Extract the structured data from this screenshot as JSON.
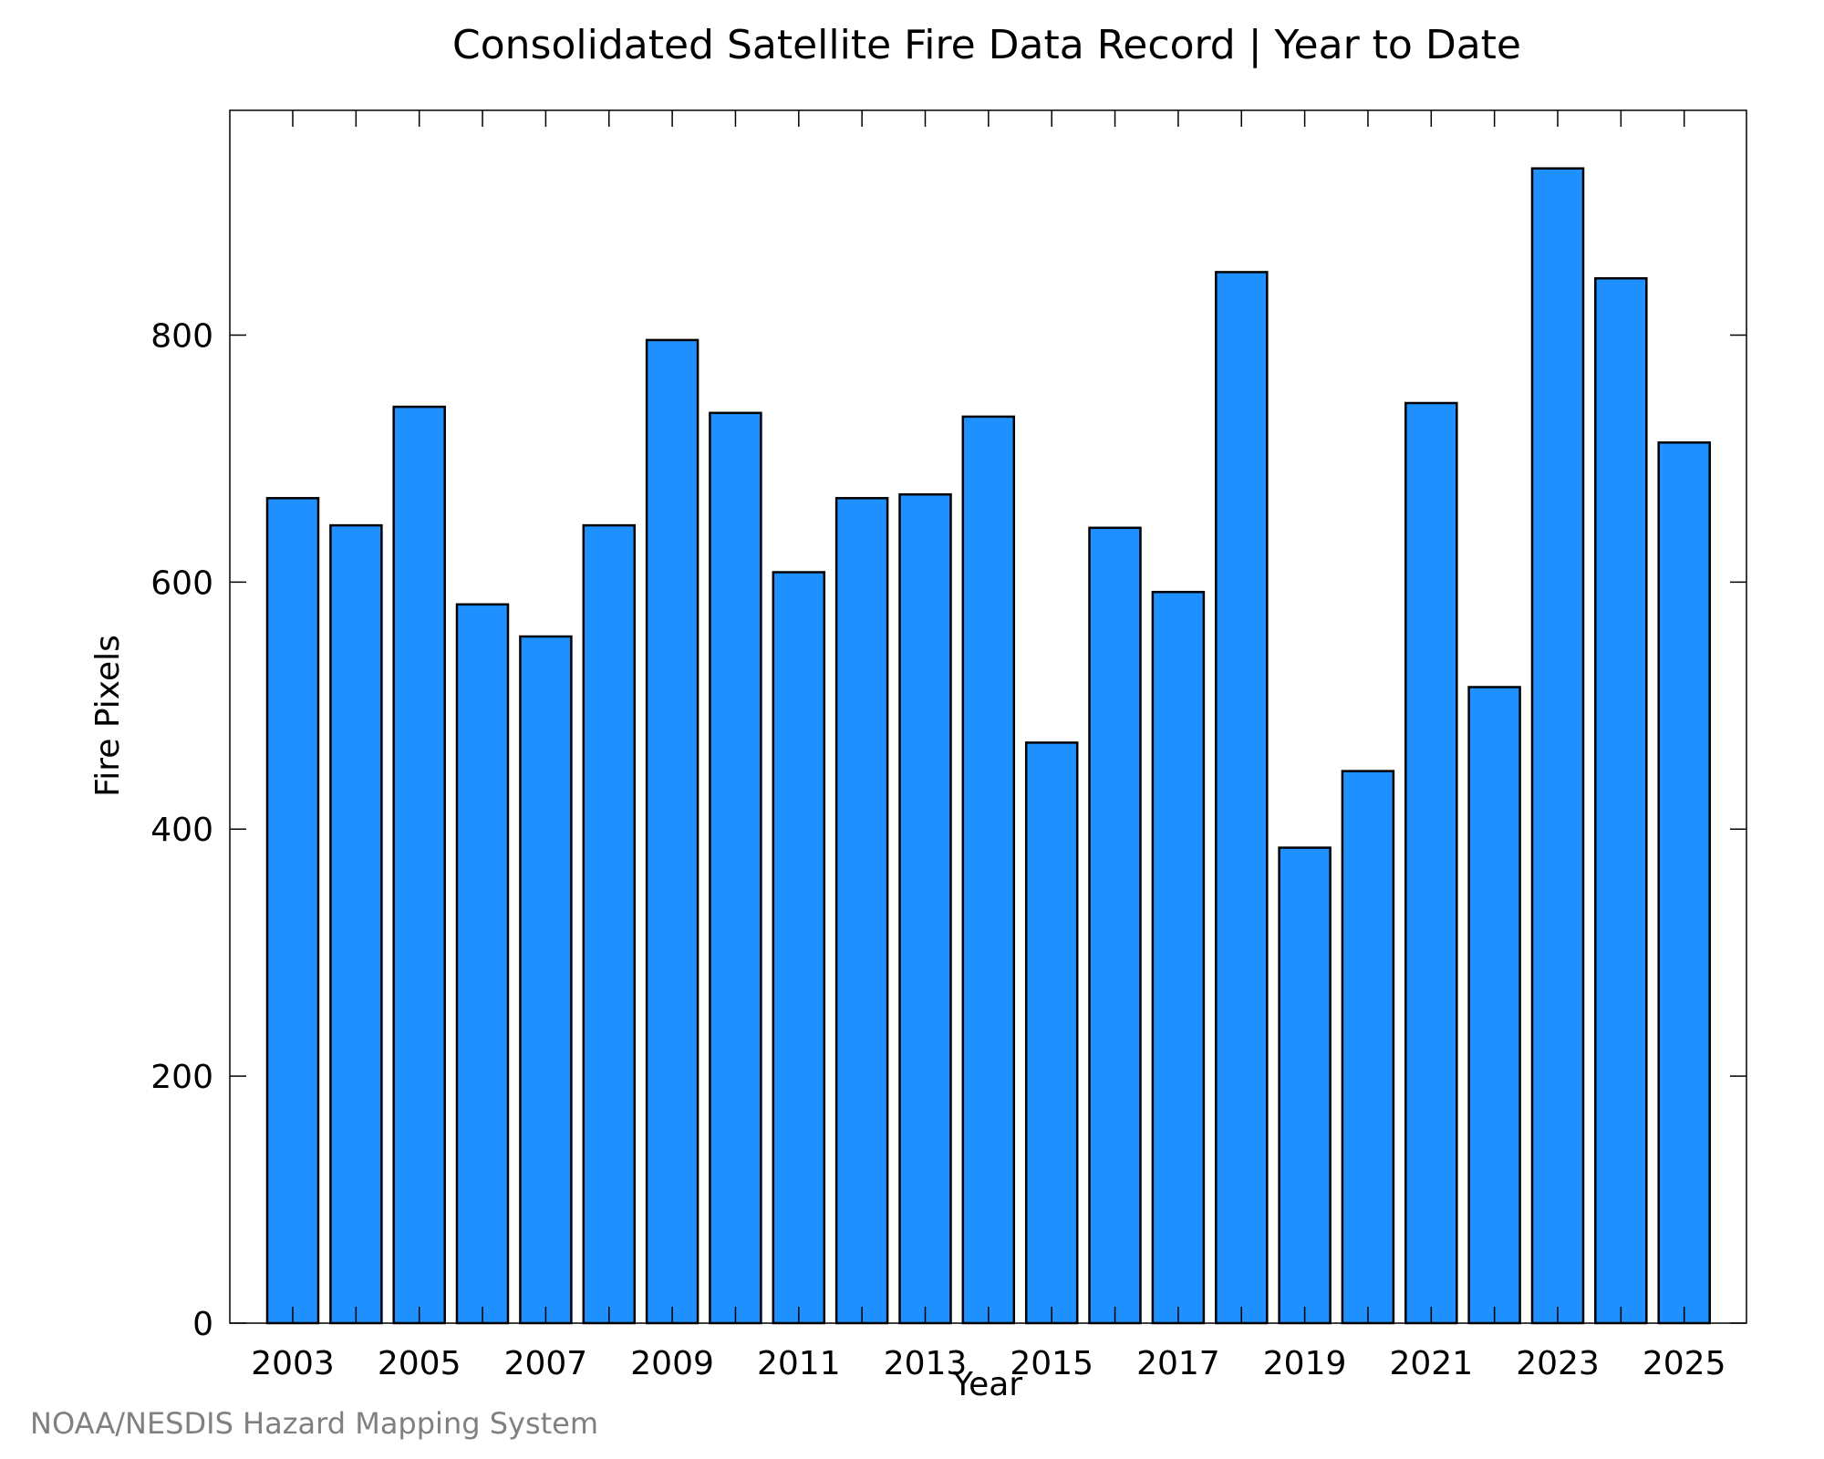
{
  "chart_data": {
    "type": "bar",
    "title": "Consolidated Satellite Fire Data Record | Year to Date",
    "xlabel": "Year",
    "ylabel": "Fire Pixels",
    "categories": [
      "2003",
      "2004",
      "2005",
      "2006",
      "2007",
      "2008",
      "2009",
      "2010",
      "2011",
      "2012",
      "2013",
      "2014",
      "2015",
      "2016",
      "2017",
      "2018",
      "2019",
      "2020",
      "2021",
      "2022",
      "2023",
      "2024",
      "2025"
    ],
    "values": [
      668,
      646,
      742,
      582,
      556,
      646,
      796,
      737,
      608,
      668,
      671,
      734,
      470,
      644,
      592,
      851,
      385,
      447,
      745,
      515,
      935,
      846,
      713
    ],
    "x_tick_labels": [
      "2003",
      "2005",
      "2007",
      "2009",
      "2011",
      "2013",
      "2015",
      "2017",
      "2019",
      "2021",
      "2023",
      "2025"
    ],
    "y_ticks": [
      0,
      200,
      400,
      600,
      800
    ],
    "ylim": [
      0,
      982
    ],
    "bar_color": "#1E90FF",
    "grid": false,
    "credit": "NOAA/NESDIS Hazard Mapping System"
  }
}
